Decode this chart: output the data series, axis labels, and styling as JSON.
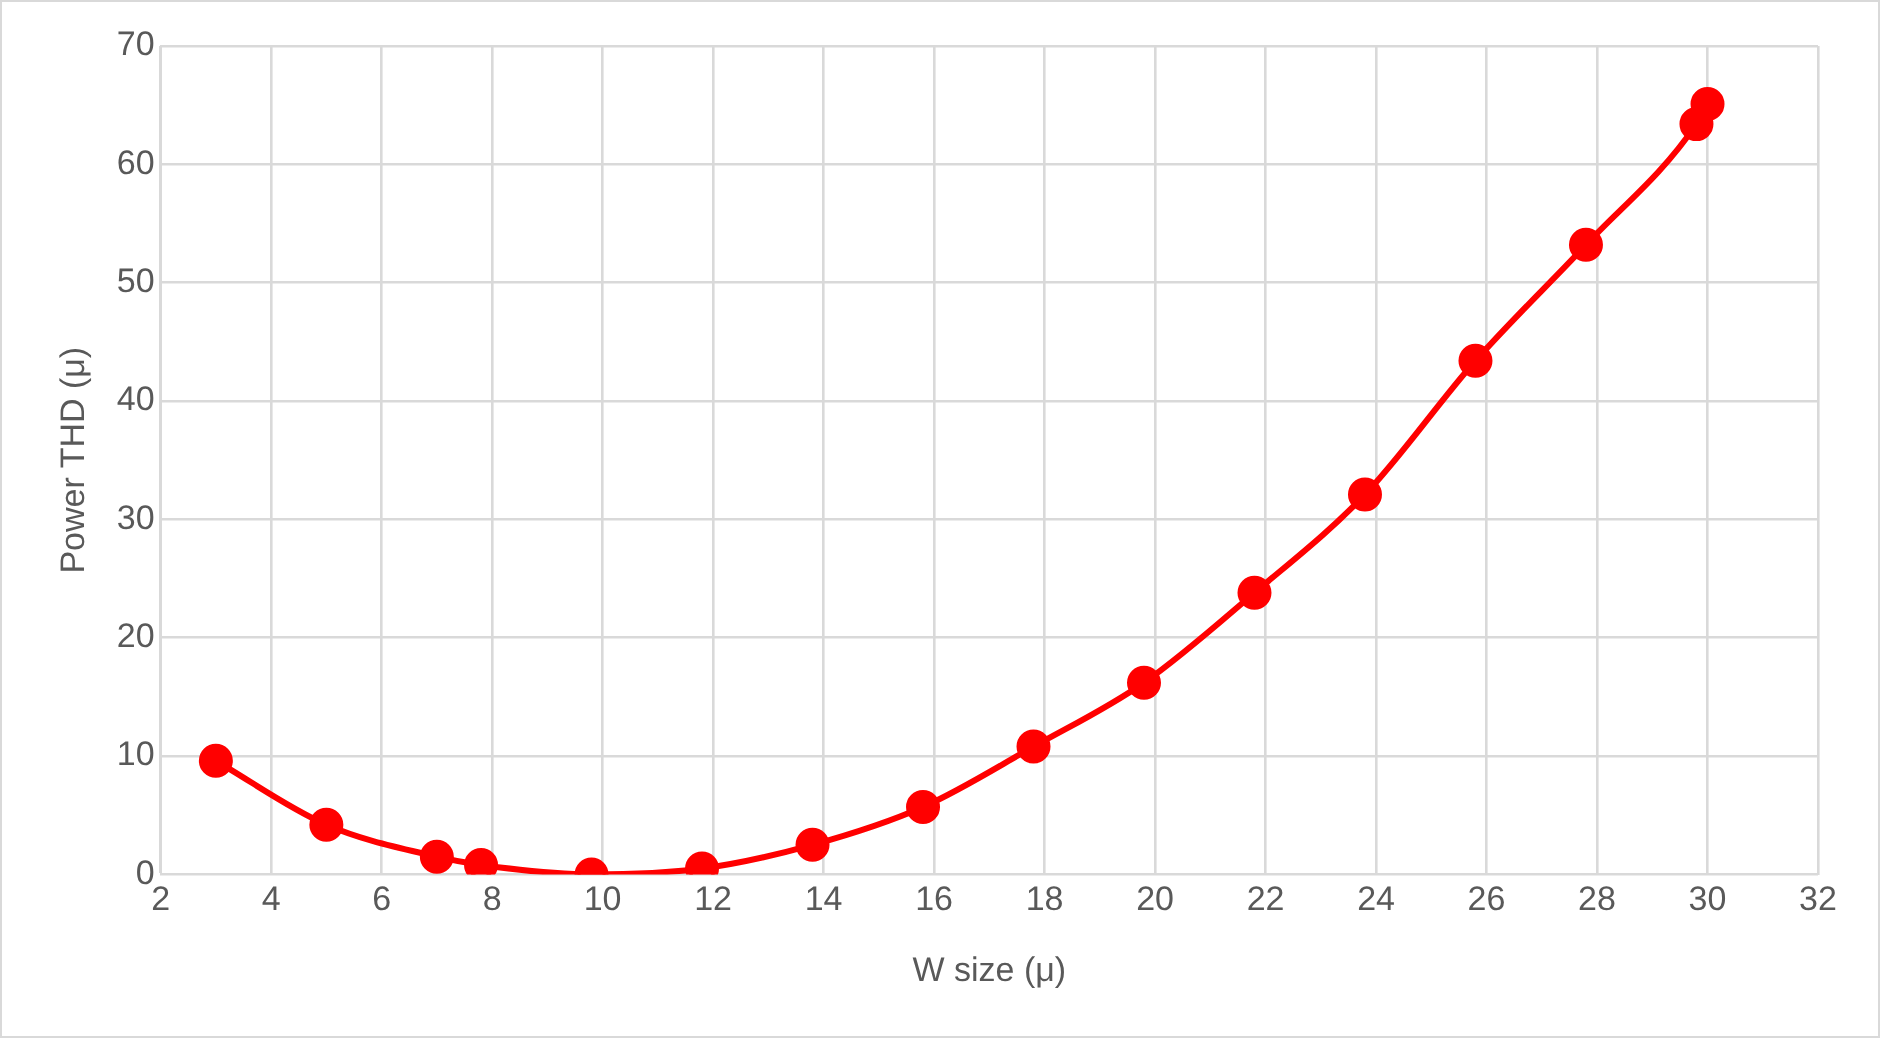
{
  "chart_data": {
    "type": "line",
    "xlabel": "W size (μ)",
    "ylabel": "Power THD (μ)",
    "x": [
      3,
      5,
      7,
      7.8,
      9.8,
      11.8,
      13.8,
      15.8,
      17.8,
      19.8,
      21.8,
      23.8,
      25.8,
      27.8,
      29.8,
      30
    ],
    "series": [
      {
        "color": "#ff0000",
        "values": [
          9.6,
          4.2,
          1.5,
          0.8,
          0,
          0.5,
          2.5,
          5.7,
          10.8,
          16.2,
          23.8,
          32.1,
          43.4,
          53.2,
          63.4,
          65.1
        ]
      }
    ],
    "xlim": [
      2,
      32
    ],
    "xticks": [
      2,
      4,
      6,
      8,
      10,
      12,
      14,
      16,
      18,
      20,
      22,
      24,
      26,
      28,
      30,
      32
    ],
    "ylim": [
      0,
      70
    ],
    "yticks": [
      0,
      10,
      20,
      30,
      40,
      50,
      60,
      70
    ],
    "grid": true,
    "legend": false,
    "marker": "circle",
    "line_style": "solid"
  }
}
